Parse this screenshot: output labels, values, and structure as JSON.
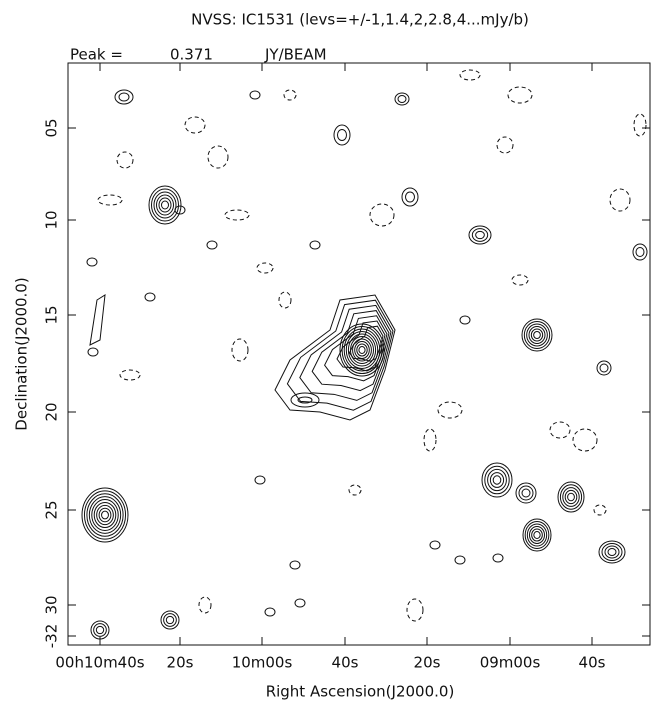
{
  "chart_data": {
    "type": "contour",
    "title": "NVSS: IC1531 (levs=+/-1,1.4,2,2.8,4...mJy/b)",
    "peak_label": "Peak =",
    "peak_value": "0.371",
    "peak_unit": "JY/BEAM",
    "x_label": "Right Ascension(J2000.0)",
    "y_label": "Declination(J2000.0)",
    "x_tick_labels": [
      "00h10m40s",
      "20s",
      "10m00s",
      "40s",
      "20s",
      "09m00s",
      "40s"
    ],
    "y_tick_labels": [
      "05",
      "10",
      "15",
      "20",
      "25",
      "30",
      "-32"
    ]
  }
}
